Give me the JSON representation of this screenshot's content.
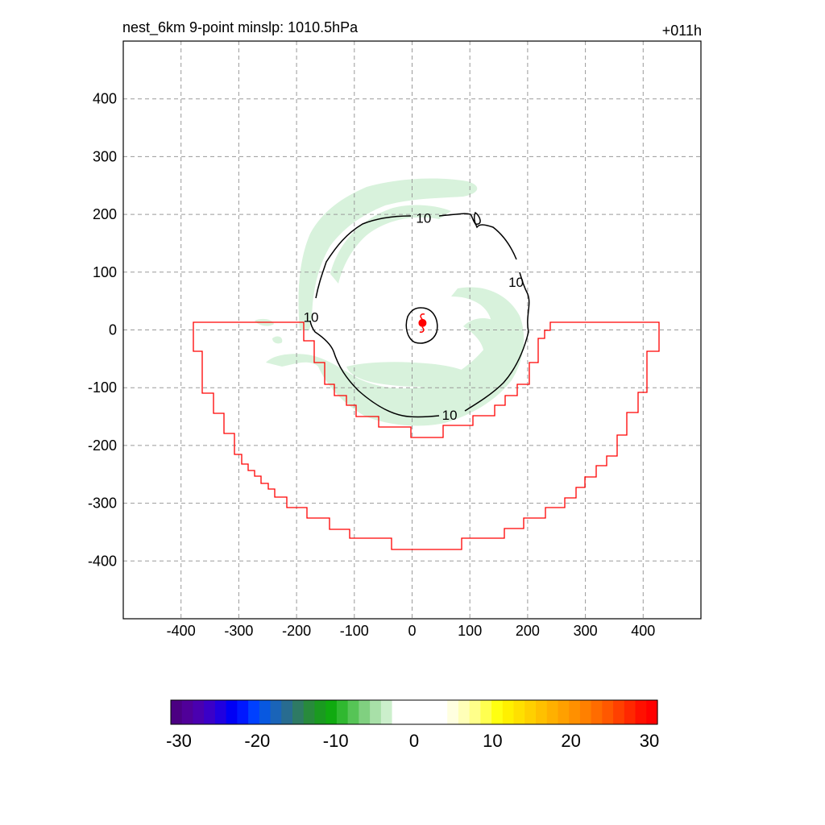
{
  "header": {
    "title": "nest_6km  9-point minslp: 1010.5hPa",
    "forecast_hour": "+011h"
  },
  "chart_data": {
    "type": "contour",
    "xlim": [
      -500,
      500
    ],
    "ylim": [
      -500,
      500
    ],
    "x_ticks": [
      -400,
      -300,
      -200,
      -100,
      0,
      100,
      200,
      300,
      400
    ],
    "y_ticks": [
      400,
      300,
      200,
      100,
      0,
      -100,
      -200,
      -300,
      -400
    ],
    "grid": true,
    "storm_center": [
      18,
      12
    ],
    "contour_value": "10",
    "contour_levels": [
      10
    ],
    "contour_label_positions": [
      [
        20,
        194
      ],
      [
        180,
        83
      ],
      [
        -175,
        22
      ],
      [
        65,
        -147
      ]
    ],
    "colorbar": {
      "ticks": [
        "-30",
        "-20",
        "-10",
        "0",
        "10",
        "20",
        "30"
      ],
      "range": [
        -30,
        30
      ]
    },
    "colors": {
      "boundary": "#ff0000",
      "contour": "#000000",
      "shade": "#d8f2dc",
      "storm": "#ff0000",
      "grid": "#9a9a9a"
    }
  }
}
